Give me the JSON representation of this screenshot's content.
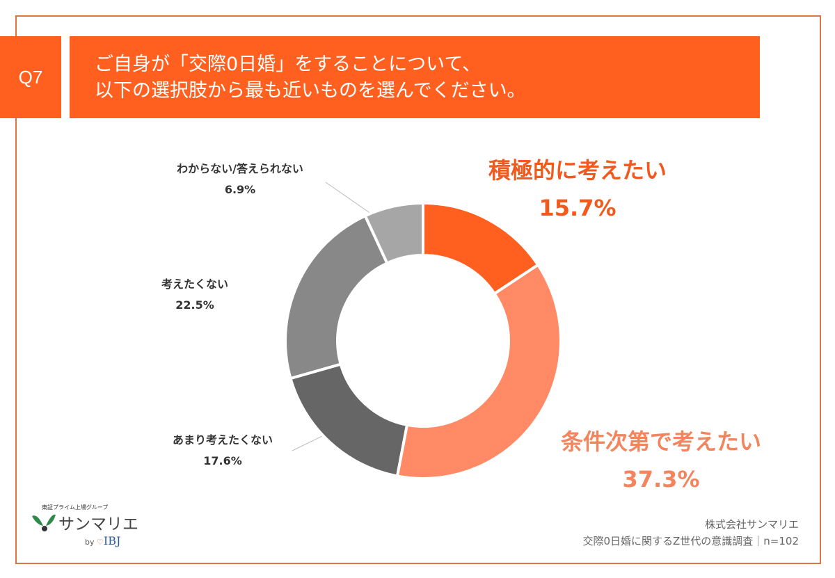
{
  "header": {
    "question_no": "Q7",
    "title_lines": [
      "ご自身が「交際0日婚」をすることについて、",
      "以下の選択肢から最も近いものを選んでください。"
    ]
  },
  "chart_data": {
    "type": "pie",
    "style": "donut",
    "categories": [
      "積極的に考えたい",
      "条件次第で考えたい",
      "あまり考えたくない",
      "考えたくない",
      "わからない/答えられない"
    ],
    "values": [
      15.7,
      37.3,
      17.6,
      22.5,
      6.9
    ],
    "labels": [
      "15.7%",
      "37.3%",
      "17.6%",
      "22.5%",
      "6.9%"
    ],
    "colors": [
      "#ff5f1f",
      "#ff8a65",
      "#666666",
      "#888888",
      "#a6a6a6"
    ],
    "label_colors": [
      "#f05a1e",
      "#f2855e",
      "#333333",
      "#333333",
      "#333333"
    ],
    "unit": "%"
  },
  "logo": {
    "group": "東証プライム上場グループ",
    "name": "サンマリエ",
    "by": "by",
    "partner": "IBJ"
  },
  "source": {
    "company": "株式会社サンマリエ",
    "survey": "交際0日婚に関するZ世代の意識調査｜n=102"
  }
}
